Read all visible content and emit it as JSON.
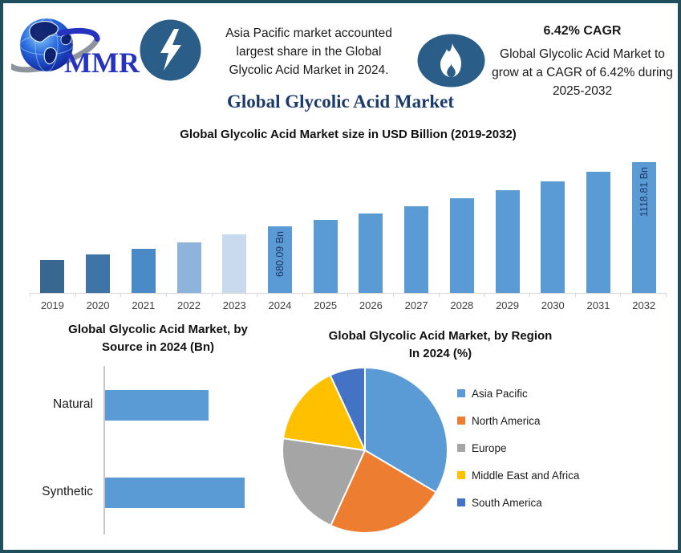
{
  "colors": {
    "frame_border": "#1F4E5C",
    "icon_circle": "#2A5D87",
    "title_navy": "#1B3A6B",
    "bar_label_navy": "#1F3864",
    "default_bar_blue": "#5B9BD5"
  },
  "header": {
    "logo_brand": "MMR",
    "highlight_left": {
      "icon": "lightning-icon",
      "text_lines": [
        "Asia Pacific market accounted",
        "largest share in the Global",
        "Glycolic Acid Market in 2024."
      ]
    },
    "highlight_right": {
      "icon": "flame-icon",
      "heading": "6.42% CAGR",
      "text_lines": [
        "Global Glycolic Acid Market to",
        "grow at a CAGR of 6.42% during",
        "2025-2032"
      ]
    }
  },
  "page_title": "Global Glycolic Acid Market",
  "chart_data": [
    {
      "type": "bar",
      "title": "Global Glycolic Acid Market size in USD Billion (2019-2032)",
      "categories": [
        "2019",
        "2020",
        "2021",
        "2022",
        "2023",
        "2024",
        "2025",
        "2026",
        "2027",
        "2028",
        "2029",
        "2030",
        "2031",
        "2032"
      ],
      "values": [
        454,
        492,
        530,
        574,
        628,
        680.09,
        723.75,
        770.22,
        819.66,
        872.28,
        928.28,
        987.87,
        1051.29,
        1118.81
      ],
      "labeled_values": {
        "2024": "680.09 Bn",
        "2032": "1118.81 Bn"
      },
      "values_note": "only 2024 and 2032 carry data labels; remaining values estimated from bar heights and the stated 6.42% CAGR",
      "bar_colors": [
        "#38678F",
        "#3E74A6",
        "#4A8AC6",
        "#8FB4DC",
        "#C9D9EE",
        "#5B9BD5",
        "#5B9BD5",
        "#5B9BD5",
        "#5B9BD5",
        "#5B9BD5",
        "#5B9BD5",
        "#5B9BD5",
        "#5B9BD5",
        "#5B9BD5"
      ],
      "ylim": [
        230,
        1118.81
      ],
      "grid": false,
      "legend": false
    },
    {
      "type": "bar",
      "orientation": "horizontal",
      "title_lines": [
        "Global Glycolic Acid Market, by",
        "Source in 2024 (Bn)"
      ],
      "title": "Global Glycolic Acid Market, by Source in 2024 (Bn)",
      "categories": [
        "Natural",
        "Synthetic"
      ],
      "relative_values": [
        0.74,
        1.0
      ],
      "values_note": "bars carry no numeric labels; lengths shown as relative proportions",
      "bar_color": "#5B9BD5",
      "grid": false,
      "legend": false
    },
    {
      "type": "pie",
      "title_lines": [
        "Global Glycolic Acid Market, by Region",
        "In 2024 (%)"
      ],
      "title": "Global Glycolic Acid Market, by Region In 2024 (%)",
      "labels": [
        "Asia Pacific",
        "North America",
        "Europe",
        "Middle East and Africa",
        "South America"
      ],
      "values_pct": [
        33.5,
        23.3,
        20.5,
        15.8,
        6.9
      ],
      "values_note": "percentages estimated from slice angles; no numeric labels shown",
      "colors": [
        "#5B9BD5",
        "#ED7D31",
        "#A5A5A5",
        "#FFC000",
        "#4472C4"
      ],
      "legend_position": "right",
      "start_angle_deg": 0,
      "direction": "clockwise"
    }
  ]
}
